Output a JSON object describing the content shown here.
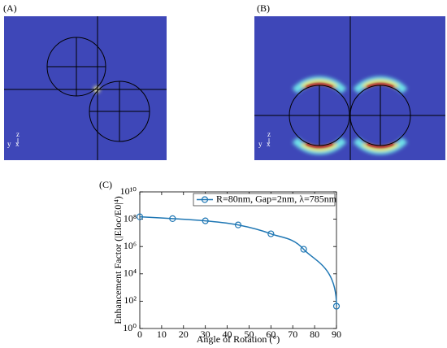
{
  "panels": [
    {
      "label": "(A)",
      "axis_labels": {
        "vertical": "z",
        "horizontal": "y",
        "out": "x"
      }
    },
    {
      "label": "(B)",
      "axis_labels": {
        "vertical": "z",
        "horizontal": "y",
        "out": "x"
      }
    }
  ],
  "chart_data": {
    "type": "line",
    "panel_label": "(C)",
    "xlabel": "Angle of Rotation (°)",
    "ylabel": "Enhancement Factor (|Eloc/E0|⁴)",
    "x": [
      0,
      15,
      30,
      45,
      60,
      75,
      90
    ],
    "series": [
      {
        "name": "R=80nm, Gap=2nm, λ=785nm",
        "color": "#1f77b4",
        "values": [
          150000000,
          110000000,
          76000000,
          38000000,
          8500000,
          630000,
          43
        ]
      }
    ],
    "xlim": [
      0,
      90
    ],
    "xticks": [
      0,
      10,
      20,
      30,
      40,
      50,
      60,
      70,
      80,
      90
    ],
    "ylim": [
      1,
      10000000000
    ],
    "yticks": [
      {
        "value": 1,
        "label": "10⁰"
      },
      {
        "value": 100,
        "label": "10²"
      },
      {
        "value": 10000,
        "label": "10⁴"
      },
      {
        "value": 1000000,
        "label": "10⁶"
      },
      {
        "value": 100000000,
        "label": "10⁸"
      },
      {
        "value": 10000000000,
        "label": "10¹⁰"
      }
    ],
    "log_y": true,
    "legend": "upper right"
  }
}
